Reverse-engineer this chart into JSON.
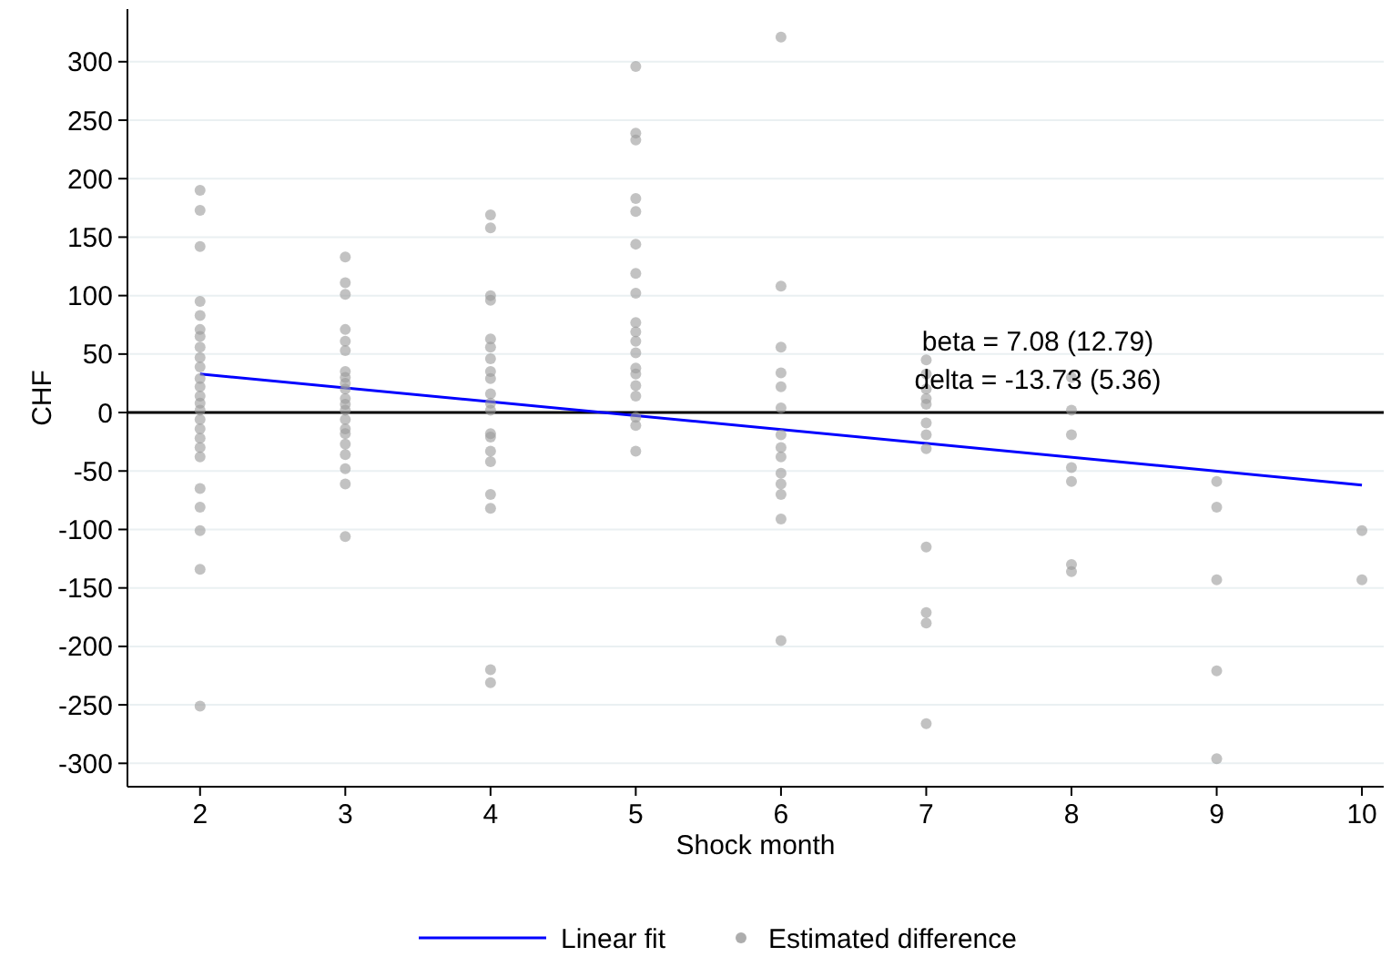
{
  "chart_data": {
    "type": "scatter",
    "xlabel": "Shock month",
    "ylabel": "CHF",
    "xlim": [
      1.5,
      10.15
    ],
    "ylim": [
      -320,
      345
    ],
    "xticks": [
      2,
      3,
      4,
      5,
      6,
      7,
      8,
      9,
      10
    ],
    "yticks": [
      -300,
      -250,
      -200,
      -150,
      -100,
      -50,
      0,
      50,
      100,
      150,
      200,
      250,
      300
    ],
    "grid": "y",
    "legend": "bottom",
    "marker": "circle",
    "ref_lines": [
      {
        "axis": "y",
        "value": 0,
        "color": "#000000"
      }
    ],
    "annotations": [
      "beta = 7.08 (12.79)",
      "delta = -13.73 (5.36)"
    ],
    "series": [
      {
        "name": "Linear fit",
        "type": "line",
        "color": "#0000ff",
        "marker": "none",
        "x": [
          2,
          10
        ],
        "values": [
          33,
          -62
        ]
      },
      {
        "name": "Estimated difference",
        "color": "#999999",
        "x": [
          2,
          2,
          2,
          2,
          2,
          2,
          2,
          2,
          2,
          2,
          2,
          2,
          2,
          2,
          2,
          2,
          2,
          2,
          2,
          2,
          2,
          2,
          2,
          2,
          2,
          3,
          3,
          3,
          3,
          3,
          3,
          3,
          3,
          3,
          3,
          3,
          3,
          3,
          3,
          3,
          3,
          3,
          3,
          3,
          3,
          3,
          4,
          4,
          4,
          4,
          4,
          4,
          4,
          4,
          4,
          4,
          4,
          4,
          4,
          4,
          4,
          4,
          4,
          4,
          4,
          4,
          5,
          5,
          5,
          5,
          5,
          5,
          5,
          5,
          5,
          5,
          5,
          5,
          5,
          5,
          5,
          5,
          5,
          5,
          5,
          6,
          6,
          6,
          6,
          6,
          6,
          6,
          6,
          6,
          6,
          6,
          6,
          6,
          6,
          7,
          7,
          7,
          7,
          7,
          7,
          7,
          7,
          7,
          7,
          7,
          7,
          8,
          8,
          8,
          8,
          8,
          8,
          8,
          9,
          9,
          9,
          9,
          9,
          10,
          10
        ],
        "values": [
          190,
          173,
          142,
          95,
          83,
          71,
          65,
          56,
          47,
          39,
          29,
          22,
          14,
          8,
          2,
          -6,
          -14,
          -22,
          -30,
          -38,
          -65,
          -81,
          -101,
          -134,
          -251,
          133,
          111,
          101,
          71,
          61,
          53,
          35,
          30,
          25,
          20,
          12,
          7,
          2,
          -6,
          -14,
          -18,
          -27,
          -36,
          -48,
          -61,
          -106,
          169,
          158,
          100,
          96,
          63,
          56,
          46,
          35,
          29,
          16,
          8,
          2,
          -18,
          -21,
          -33,
          -42,
          -70,
          -82,
          -220,
          -231,
          296,
          239,
          233,
          183,
          172,
          144,
          119,
          102,
          77,
          69,
          61,
          51,
          38,
          33,
          23,
          14,
          -4,
          -11,
          -33,
          321,
          108,
          56,
          34,
          22,
          4,
          -19,
          -30,
          -38,
          -52,
          -61,
          -70,
          -91,
          -195,
          45,
          33,
          20,
          12,
          7,
          -9,
          -19,
          -31,
          -115,
          -171,
          -180,
          -266,
          30,
          2,
          -19,
          -47,
          -59,
          -130,
          -136,
          -59,
          -81,
          -143,
          -221,
          -296,
          -101,
          -143
        ]
      }
    ]
  }
}
